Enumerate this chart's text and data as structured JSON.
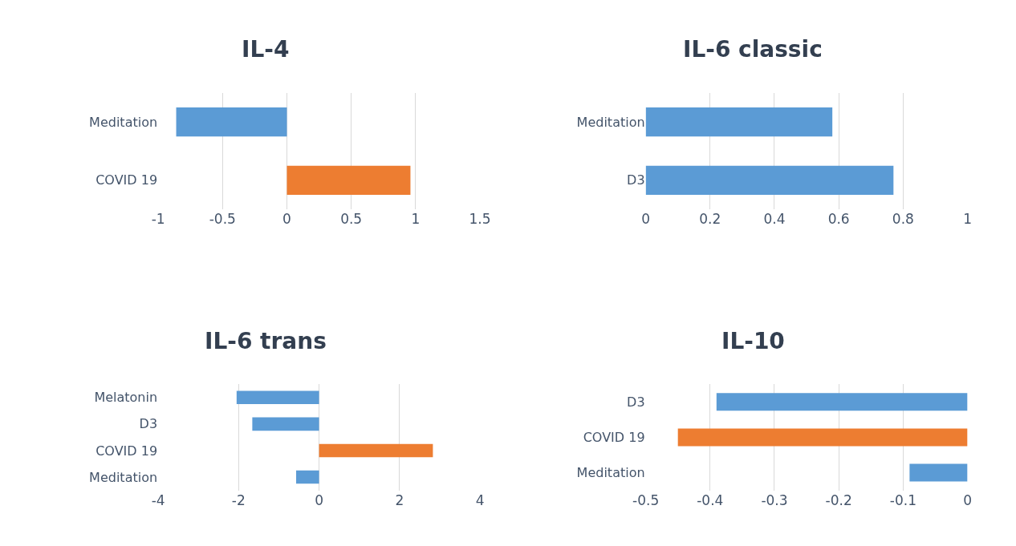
{
  "chart_data": [
    {
      "type": "bar",
      "orientation": "horizontal",
      "title": "IL-4",
      "categories": [
        "Meditation",
        "COVID 19"
      ],
      "values": [
        -0.86,
        0.96
      ],
      "colors": [
        "#5b9bd5",
        "#ed7d31"
      ],
      "xlim": [
        -1,
        1.5
      ],
      "xticks": [
        -1,
        -0.5,
        0,
        0.5,
        1,
        1.5
      ],
      "grid": "x"
    },
    {
      "type": "bar",
      "orientation": "horizontal",
      "title": "IL-6 classic",
      "categories": [
        "Meditation",
        "D3"
      ],
      "values": [
        0.58,
        0.77
      ],
      "colors": [
        "#5b9bd5",
        "#5b9bd5"
      ],
      "xlim": [
        0,
        1
      ],
      "xticks": [
        0,
        0.2,
        0.4,
        0.6,
        0.8,
        1
      ],
      "grid": "x"
    },
    {
      "type": "bar",
      "orientation": "horizontal",
      "title": "IL-6 trans",
      "categories": [
        "Melatonin",
        "D3",
        "COVID 19",
        "Meditation"
      ],
      "values": [
        -2.05,
        -1.66,
        2.83,
        -0.57
      ],
      "colors": [
        "#5b9bd5",
        "#5b9bd5",
        "#ed7d31",
        "#5b9bd5"
      ],
      "xlim": [
        -4,
        4
      ],
      "xticks": [
        -4,
        -2,
        0,
        2,
        4
      ],
      "grid": "x"
    },
    {
      "type": "bar",
      "orientation": "horizontal",
      "title": "IL-10",
      "categories": [
        "D3",
        "COVID 19",
        "Meditation"
      ],
      "values": [
        -0.39,
        -0.45,
        -0.09
      ],
      "colors": [
        "#5b9bd5",
        "#ed7d31",
        "#5b9bd5"
      ],
      "xlim": [
        -0.5,
        0
      ],
      "xticks": [
        -0.5,
        -0.4,
        -0.3,
        -0.2,
        -0.1,
        0
      ],
      "grid": "x"
    }
  ]
}
